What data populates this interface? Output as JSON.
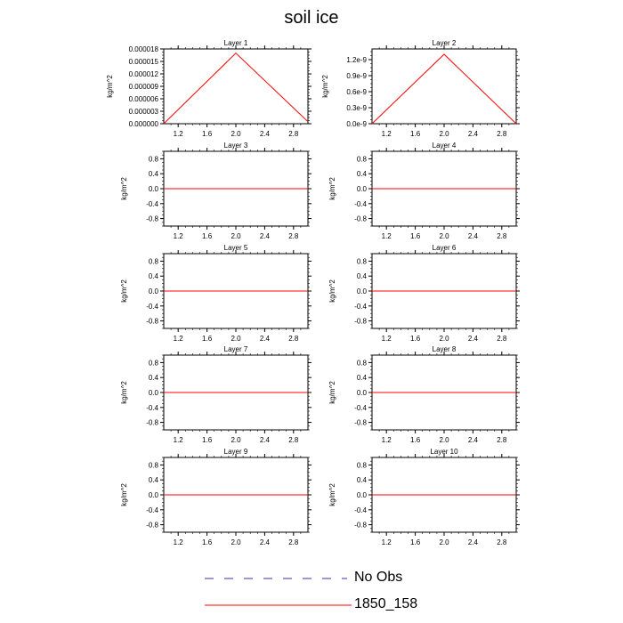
{
  "title": "soil ice",
  "colors": {
    "model_line": "#ff0000",
    "obs_line": "#3333aa",
    "axis": "#000000"
  },
  "legend": [
    {
      "label": "No Obs",
      "style": "dashed",
      "color": "#3333aa"
    },
    {
      "label": "1850_158",
      "style": "solid",
      "color": "#ff0000"
    }
  ],
  "chart_data": [
    {
      "type": "line",
      "title": "Layer 1",
      "ylabel": "kg/m^2",
      "xlim": [
        1.0,
        3.0
      ],
      "ylim": [
        0,
        1.8e-05
      ],
      "x_ticks": [
        "1.2",
        "1.6",
        "2.0",
        "2.4",
        "2.8"
      ],
      "y_ticks": [
        {
          "value": 0.0,
          "label": "0.000000"
        },
        {
          "value": 3e-06,
          "label": "0.000003"
        },
        {
          "value": 6e-06,
          "label": "0.000006"
        },
        {
          "value": 9e-06,
          "label": "0.000009"
        },
        {
          "value": 1.2e-05,
          "label": "0.000012"
        },
        {
          "value": 1.5e-05,
          "label": "0.000015"
        },
        {
          "value": 1.8e-05,
          "label": "0.000018"
        }
      ],
      "series": [
        {
          "name": "1850_158",
          "x": [
            1,
            2,
            3
          ],
          "y": [
            0,
            1.7e-05,
            5e-07
          ]
        }
      ]
    },
    {
      "type": "line",
      "title": "Layer 2",
      "ylabel": "kg/m^2",
      "xlim": [
        1.0,
        3.0
      ],
      "ylim": [
        0,
        1.4e-09
      ],
      "x_ticks": [
        "1.2",
        "1.6",
        "2.0",
        "2.4",
        "2.8"
      ],
      "y_ticks": [
        {
          "value": 0.0,
          "label": "0.0e-9"
        },
        {
          "value": 3e-10,
          "label": "0.3e-9"
        },
        {
          "value": 6e-10,
          "label": "0.6e-9"
        },
        {
          "value": 9e-10,
          "label": "0.9e-9"
        },
        {
          "value": 1.2e-09,
          "label": "1.2e-9"
        }
      ],
      "series": [
        {
          "name": "1850_158",
          "x": [
            1,
            2,
            3
          ],
          "y": [
            0,
            1.3e-09,
            0
          ]
        }
      ]
    },
    {
      "type": "line",
      "title": "Layer 3",
      "ylabel": "kg/m^2",
      "xlim": [
        1.0,
        3.0
      ],
      "ylim": [
        -1.0,
        1.0
      ],
      "x_ticks": [
        "1.2",
        "1.6",
        "2.0",
        "2.4",
        "2.8"
      ],
      "y_ticks": [
        {
          "value": 0.8,
          "label": "0.8"
        },
        {
          "value": 0.4,
          "label": "0.4"
        },
        {
          "value": 0.0,
          "label": "0.0"
        },
        {
          "value": -0.4,
          "label": "-0.4"
        },
        {
          "value": -0.8,
          "label": "-0.8"
        }
      ],
      "series": [
        {
          "name": "1850_158",
          "x": [
            1,
            2,
            3
          ],
          "y": [
            0,
            0,
            0
          ]
        }
      ]
    },
    {
      "type": "line",
      "title": "Layer 4",
      "ylabel": "kg/m^2",
      "xlim": [
        1.0,
        3.0
      ],
      "ylim": [
        -1.0,
        1.0
      ],
      "x_ticks": [
        "1.2",
        "1.6",
        "2.0",
        "2.4",
        "2.8"
      ],
      "y_ticks": [
        {
          "value": 0.8,
          "label": "0.8"
        },
        {
          "value": 0.4,
          "label": "0.4"
        },
        {
          "value": 0.0,
          "label": "0.0"
        },
        {
          "value": -0.4,
          "label": "-0.4"
        },
        {
          "value": -0.8,
          "label": "-0.8"
        }
      ],
      "series": [
        {
          "name": "1850_158",
          "x": [
            1,
            2,
            3
          ],
          "y": [
            0,
            0,
            0
          ]
        }
      ]
    },
    {
      "type": "line",
      "title": "Layer 5",
      "ylabel": "kg/m^2",
      "xlim": [
        1.0,
        3.0
      ],
      "ylim": [
        -1.0,
        1.0
      ],
      "x_ticks": [
        "1.2",
        "1.6",
        "2.0",
        "2.4",
        "2.8"
      ],
      "y_ticks": [
        {
          "value": 0.8,
          "label": "0.8"
        },
        {
          "value": 0.4,
          "label": "0.4"
        },
        {
          "value": 0.0,
          "label": "0.0"
        },
        {
          "value": -0.4,
          "label": "-0.4"
        },
        {
          "value": -0.8,
          "label": "-0.8"
        }
      ],
      "series": [
        {
          "name": "1850_158",
          "x": [
            1,
            2,
            3
          ],
          "y": [
            0,
            0,
            0
          ]
        }
      ]
    },
    {
      "type": "line",
      "title": "Layer 6",
      "ylabel": "kg/m^2",
      "xlim": [
        1.0,
        3.0
      ],
      "ylim": [
        -1.0,
        1.0
      ],
      "x_ticks": [
        "1.2",
        "1.6",
        "2.0",
        "2.4",
        "2.8"
      ],
      "y_ticks": [
        {
          "value": 0.8,
          "label": "0.8"
        },
        {
          "value": 0.4,
          "label": "0.4"
        },
        {
          "value": 0.0,
          "label": "0.0"
        },
        {
          "value": -0.4,
          "label": "-0.4"
        },
        {
          "value": -0.8,
          "label": "-0.8"
        }
      ],
      "series": [
        {
          "name": "1850_158",
          "x": [
            1,
            2,
            3
          ],
          "y": [
            0,
            0,
            0
          ]
        }
      ]
    },
    {
      "type": "line",
      "title": "Layer 7",
      "ylabel": "kg/m^2",
      "xlim": [
        1.0,
        3.0
      ],
      "ylim": [
        -1.0,
        1.0
      ],
      "x_ticks": [
        "1.2",
        "1.6",
        "2.0",
        "2.4",
        "2.8"
      ],
      "y_ticks": [
        {
          "value": 0.8,
          "label": "0.8"
        },
        {
          "value": 0.4,
          "label": "0.4"
        },
        {
          "value": 0.0,
          "label": "0.0"
        },
        {
          "value": -0.4,
          "label": "-0.4"
        },
        {
          "value": -0.8,
          "label": "-0.8"
        }
      ],
      "series": [
        {
          "name": "1850_158",
          "x": [
            1,
            2,
            3
          ],
          "y": [
            0,
            0,
            0
          ]
        }
      ]
    },
    {
      "type": "line",
      "title": "Layer 8",
      "ylabel": "kg/m^2",
      "xlim": [
        1.0,
        3.0
      ],
      "ylim": [
        -1.0,
        1.0
      ],
      "x_ticks": [
        "1.2",
        "1.6",
        "2.0",
        "2.4",
        "2.8"
      ],
      "y_ticks": [
        {
          "value": 0.8,
          "label": "0.8"
        },
        {
          "value": 0.4,
          "label": "0.4"
        },
        {
          "value": 0.0,
          "label": "0.0"
        },
        {
          "value": -0.4,
          "label": "-0.4"
        },
        {
          "value": -0.8,
          "label": "-0.8"
        }
      ],
      "series": [
        {
          "name": "1850_158",
          "x": [
            1,
            2,
            3
          ],
          "y": [
            0,
            0,
            0
          ]
        }
      ]
    },
    {
      "type": "line",
      "title": "Layer 9",
      "ylabel": "kg/m^2",
      "xlim": [
        1.0,
        3.0
      ],
      "ylim": [
        -1.0,
        1.0
      ],
      "x_ticks": [
        "1.2",
        "1.6",
        "2.0",
        "2.4",
        "2.8"
      ],
      "y_ticks": [
        {
          "value": 0.8,
          "label": "0.8"
        },
        {
          "value": 0.4,
          "label": "0.4"
        },
        {
          "value": 0.0,
          "label": "0.0"
        },
        {
          "value": -0.4,
          "label": "-0.4"
        },
        {
          "value": -0.8,
          "label": "-0.8"
        }
      ],
      "series": [
        {
          "name": "1850_158",
          "x": [
            1,
            2,
            3
          ],
          "y": [
            0,
            0,
            0
          ]
        }
      ]
    },
    {
      "type": "line",
      "title": "Layer 10",
      "ylabel": "kg/m^2",
      "xlim": [
        1.0,
        3.0
      ],
      "ylim": [
        -1.0,
        1.0
      ],
      "x_ticks": [
        "1.2",
        "1.6",
        "2.0",
        "2.4",
        "2.8"
      ],
      "y_ticks": [
        {
          "value": 0.8,
          "label": "0.8"
        },
        {
          "value": 0.4,
          "label": "0.4"
        },
        {
          "value": 0.0,
          "label": "0.0"
        },
        {
          "value": -0.4,
          "label": "-0.4"
        },
        {
          "value": -0.8,
          "label": "-0.8"
        }
      ],
      "series": [
        {
          "name": "1850_158",
          "x": [
            1,
            2,
            3
          ],
          "y": [
            0,
            0,
            0
          ]
        }
      ]
    }
  ]
}
